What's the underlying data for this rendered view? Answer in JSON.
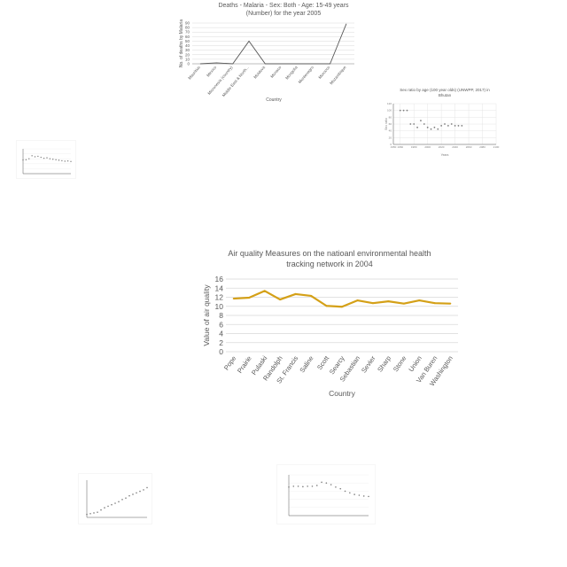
{
  "chart_data": [
    {
      "type": "line",
      "title": "Deaths - Malaria - Sex: Both - Age: 15-49 years (Number) for the year 2005",
      "xlabel": "Country",
      "ylabel": "No. of deaths by Malaria",
      "categories": [
        "Mauritius",
        "Mexico",
        "Micronesia (country)",
        "Middle East & North...",
        "Moldova",
        "Monaco",
        "Mongolia",
        "Montenegro",
        "Morocco",
        "Mozambique"
      ],
      "values": [
        0,
        2,
        0,
        50,
        0,
        0,
        0,
        0,
        0,
        88
      ],
      "ylim": [
        0,
        90
      ],
      "yticks": [
        0,
        10,
        20,
        30,
        40,
        50,
        60,
        70,
        80,
        90
      ],
      "grid": true,
      "color": "#595959"
    },
    {
      "type": "scatter",
      "title": "Sex ratio by age (100 year olds) (UNWPP, 2017) in Bhutan",
      "xlabel": "Years",
      "ylabel": "Sex ratio",
      "x": [
        1960,
        1965,
        1970,
        1975,
        1980,
        1985,
        1990,
        1995,
        2000,
        2005,
        2010,
        2015,
        2020,
        2025,
        2030,
        2035,
        2040,
        2045,
        2050
      ],
      "values": [
        100,
        100,
        100,
        60,
        60,
        50,
        70,
        60,
        50,
        45,
        50,
        45,
        55,
        60,
        55,
        60,
        55,
        55,
        55
      ],
      "xlim": [
        1950,
        2100
      ],
      "xticks": [
        1950,
        1960,
        1980,
        2000,
        2020,
        2040,
        2060,
        2080,
        2100
      ],
      "xtick_labels": [
        "1950",
        "1960",
        "1980",
        "2000",
        "2020",
        "2040",
        "2060",
        "2080",
        "2100"
      ],
      "ylim": [
        0,
        120
      ],
      "yticks": [
        0,
        20,
        40,
        60,
        80,
        100,
        120
      ],
      "grid": true,
      "color": "#7f7f7f"
    },
    {
      "type": "scatter",
      "title": "",
      "x": [
        1,
        2,
        3,
        4,
        5,
        6,
        7,
        8,
        9,
        10,
        11,
        12,
        13,
        14,
        15,
        16,
        17
      ],
      "values": [
        55,
        56,
        60,
        72,
        68,
        70,
        66,
        62,
        64,
        60,
        58,
        56,
        54,
        52,
        50,
        51,
        49
      ],
      "ylim": [
        0,
        100
      ],
      "grid": true,
      "color": "#7f7f7f"
    },
    {
      "type": "line",
      "title": "Air quality Measures on the natioanl environmental health tracking network in 2004",
      "xlabel": "Country",
      "ylabel": "Value of air quality",
      "categories": [
        "Pope",
        "Prairie",
        "Pulaski",
        "Randolph",
        "St. Francis",
        "Saline",
        "Scott",
        "Searcy",
        "Sebastian",
        "Sevier",
        "Sharp",
        "Stone",
        "Union",
        "Van Buren",
        "Washington"
      ],
      "values": [
        11.7,
        11.9,
        13.4,
        11.5,
        12.7,
        12.3,
        10.1,
        9.9,
        11.3,
        10.7,
        11.1,
        10.6,
        11.3,
        10.7,
        10.6
      ],
      "ylim": [
        0,
        16
      ],
      "yticks": [
        0,
        2,
        4,
        6,
        8,
        10,
        12,
        14,
        16
      ],
      "grid": true,
      "color": "#d4a017"
    },
    {
      "type": "scatter",
      "title": "",
      "x": [
        1,
        2,
        3,
        4,
        5,
        6,
        7,
        8,
        9,
        10,
        11,
        12,
        13,
        14,
        15,
        16,
        17,
        18
      ],
      "values": [
        8,
        10,
        12,
        14,
        20,
        26,
        30,
        34,
        38,
        42,
        48,
        52,
        58,
        62,
        66,
        70,
        74,
        80
      ],
      "ylim": [
        0,
        100
      ],
      "grid": false,
      "color": "#7f7f7f",
      "accent": "#e8a33c"
    },
    {
      "type": "scatter",
      "title": "",
      "x": [
        1,
        2,
        3,
        4,
        5,
        6,
        7,
        8,
        9,
        10,
        11,
        12,
        13,
        14,
        15,
        16,
        17,
        18
      ],
      "values": [
        70,
        72,
        72,
        71,
        72,
        72,
        74,
        82,
        80,
        76,
        70,
        66,
        60,
        56,
        52,
        50,
        48,
        47
      ],
      "ylim": [
        0,
        100
      ],
      "grid": true,
      "color": "#7f7f7f"
    }
  ]
}
